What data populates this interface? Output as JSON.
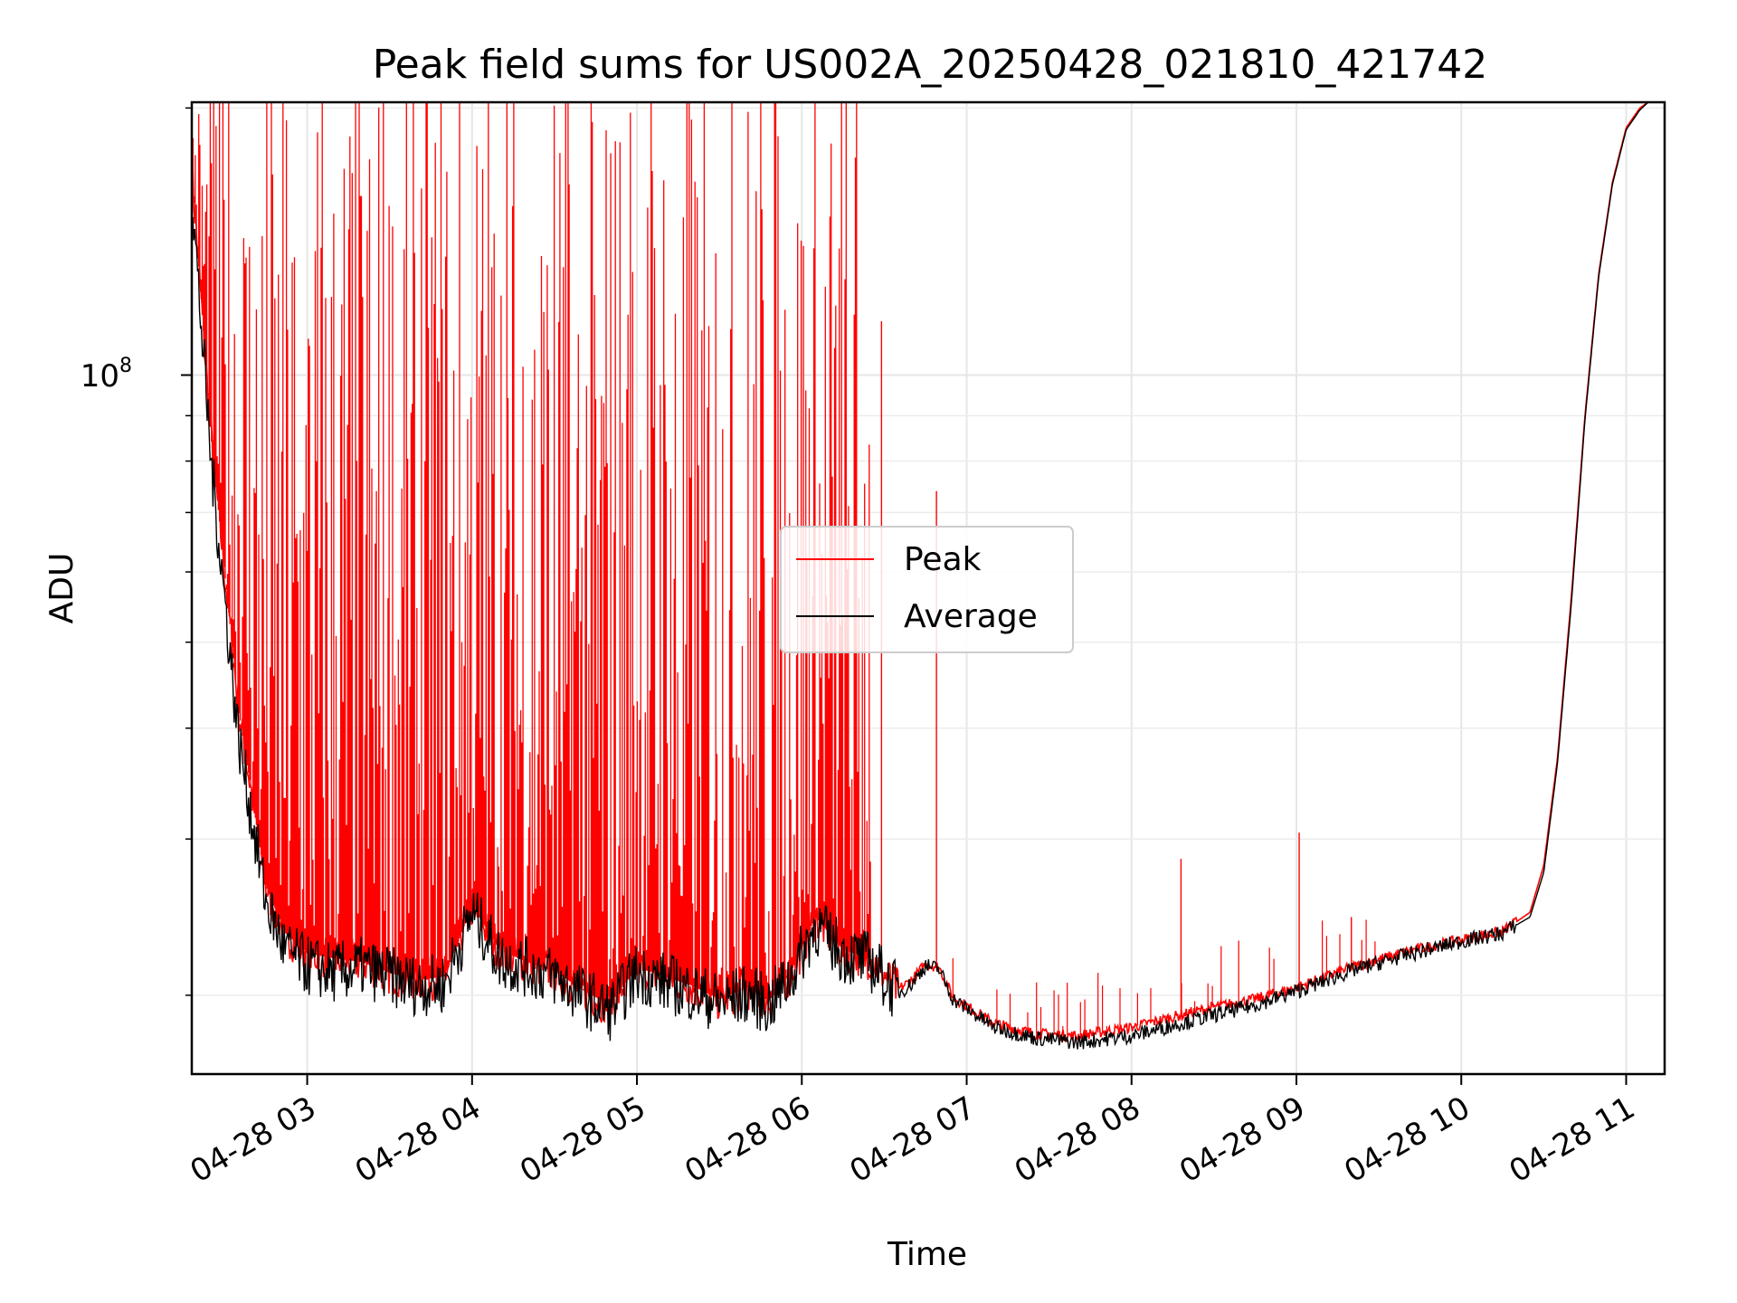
{
  "chart_data": {
    "type": "line",
    "title": "Peak field sums for US002A_20250428_021810_421742",
    "xlabel": "Time",
    "ylabel": "ADU",
    "y_scale": "log",
    "ylim": [
      16300000,
      203000000
    ],
    "xlim": [
      "04-28 02:18",
      "04-28 11:14"
    ],
    "y_major_tick": {
      "value": 100000000,
      "base": "10",
      "exponent": "8"
    },
    "y_minor_ticks": [
      20000000,
      30000000,
      40000000,
      50000000,
      60000000,
      70000000,
      80000000,
      90000000,
      200000000
    ],
    "x_ticks": [
      {
        "time": "04-28 03:00",
        "label": "04-28 03"
      },
      {
        "time": "04-28 04:00",
        "label": "04-28 04"
      },
      {
        "time": "04-28 05:00",
        "label": "04-28 05"
      },
      {
        "time": "04-28 06:00",
        "label": "04-28 06"
      },
      {
        "time": "04-28 07:00",
        "label": "04-28 07"
      },
      {
        "time": "04-28 08:00",
        "label": "04-28 08"
      },
      {
        "time": "04-28 09:00",
        "label": "04-28 09"
      },
      {
        "time": "04-28 10:00",
        "label": "04-28 10"
      },
      {
        "time": "04-28 11:00",
        "label": "04-28 11"
      }
    ],
    "grid": true,
    "legend_position": "center",
    "series": [
      {
        "name": "Peak",
        "color": "#ff0000",
        "x": [
          "04-28 02:18",
          "04-28 02:25",
          "04-28 02:35",
          "04-28 02:45",
          "04-28 02:52",
          "04-28 03:00",
          "04-28 03:10",
          "04-28 03:20",
          "04-28 03:30",
          "04-28 03:40",
          "04-28 03:50",
          "04-28 04:00",
          "04-28 04:10",
          "04-28 04:20",
          "04-28 04:30",
          "04-28 04:40",
          "04-28 04:50",
          "04-28 05:00",
          "04-28 05:10",
          "04-28 05:20",
          "04-28 05:30",
          "04-28 05:40",
          "04-28 05:48",
          "04-28 05:56",
          "04-28 06:05",
          "04-28 06:15",
          "04-28 06:25",
          "04-28 06:35",
          "04-28 06:40",
          "04-28 06:45",
          "04-28 06:50",
          "04-28 06:55",
          "04-28 07:10",
          "04-28 07:25",
          "04-28 07:40",
          "04-28 08:00",
          "04-28 08:15",
          "04-28 08:30",
          "04-28 08:45",
          "04-28 09:00",
          "04-28 09:20",
          "04-28 09:40",
          "04-28 10:00",
          "04-28 10:15",
          "04-28 10:25",
          "04-28 10:30",
          "04-28 10:35",
          "04-28 10:40",
          "04-28 10:45",
          "04-28 10:50",
          "04-28 10:55",
          "04-28 11:00",
          "04-28 11:05",
          "04-28 11:08",
          "04-28 11:10"
        ],
        "y": [
          170000000,
          85000000,
          42000000,
          26500000,
          23500000,
          22300000,
          22000000,
          21800000,
          21200000,
          20800000,
          21000000,
          25200000,
          22500000,
          21800000,
          21300000,
          20300000,
          19500000,
          21500000,
          21000000,
          20500000,
          19800000,
          20400000,
          19700000,
          21200000,
          24500000,
          22500000,
          22000000,
          20300000,
          20800000,
          21700000,
          21500000,
          19900000,
          18600000,
          18100000,
          18000000,
          18400000,
          18900000,
          19400000,
          19800000,
          20400000,
          21500000,
          22400000,
          23100000,
          23600000,
          24800000,
          28000000,
          37000000,
          56000000,
          90000000,
          130000000,
          165000000,
          190000000,
          200000000,
          203000000,
          203000000
        ]
      },
      {
        "name": "Average",
        "color": "#000000",
        "x": [
          "04-28 02:18",
          "04-28 02:25",
          "04-28 02:35",
          "04-28 02:45",
          "04-28 02:52",
          "04-28 03:00",
          "04-28 03:10",
          "04-28 03:20",
          "04-28 03:30",
          "04-28 03:40",
          "04-28 03:50",
          "04-28 04:00",
          "04-28 04:10",
          "04-28 04:20",
          "04-28 04:30",
          "04-28 04:40",
          "04-28 04:50",
          "04-28 05:00",
          "04-28 05:10",
          "04-28 05:20",
          "04-28 05:30",
          "04-28 05:40",
          "04-28 05:48",
          "04-28 05:56",
          "04-28 06:05",
          "04-28 06:15",
          "04-28 06:25",
          "04-28 06:35",
          "04-28 06:40",
          "04-28 06:45",
          "04-28 06:50",
          "04-28 06:55",
          "04-28 07:10",
          "04-28 07:25",
          "04-28 07:40",
          "04-28 08:00",
          "04-28 08:15",
          "04-28 08:30",
          "04-28 08:45",
          "04-28 09:00",
          "04-28 09:20",
          "04-28 09:40",
          "04-28 10:00",
          "04-28 10:15",
          "04-28 10:25",
          "04-28 10:30",
          "04-28 10:35",
          "04-28 10:40",
          "04-28 10:45",
          "04-28 10:50",
          "04-28 10:55",
          "04-28 11:00",
          "04-28 11:05",
          "04-28 11:08",
          "04-28 11:10"
        ],
        "y": [
          160000000,
          80000000,
          39000000,
          25500000,
          22500000,
          21600000,
          21200000,
          21500000,
          21000000,
          20500000,
          20600000,
          24800000,
          22000000,
          21500000,
          21000000,
          20000000,
          19200000,
          21200000,
          20700000,
          20200000,
          19600000,
          20100000,
          19500000,
          21000000,
          24000000,
          22300000,
          21800000,
          20100000,
          20600000,
          21600000,
          21400000,
          19800000,
          18400000,
          17900000,
          17700000,
          18000000,
          18500000,
          19000000,
          19500000,
          20200000,
          21300000,
          22200000,
          23000000,
          23500000,
          24500000,
          27500000,
          36500000,
          55000000,
          89000000,
          129000000,
          164000000,
          189000000,
          199000000,
          203000000,
          203000000
        ]
      }
    ],
    "peak_spikes": [
      {
        "x": "04-28 06:29",
        "y": 115000000
      },
      {
        "x": "04-28 06:49",
        "y": 74000000
      },
      {
        "x": "04-28 08:18",
        "y": 28500000
      },
      {
        "x": "04-28 09:01",
        "y": 30500000
      },
      {
        "x": "04-28 09:20",
        "y": 24500000
      }
    ]
  }
}
